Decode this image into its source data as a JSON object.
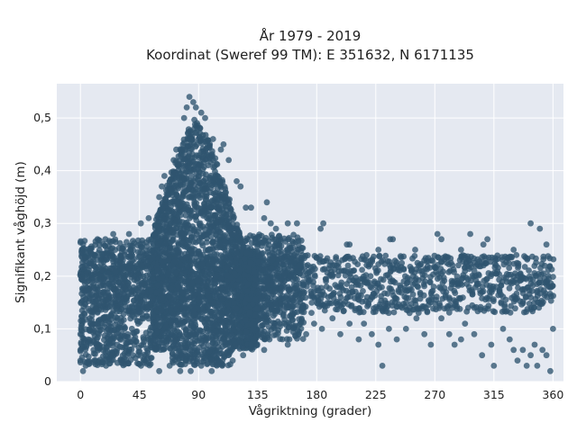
{
  "chart_data": {
    "type": "scatter",
    "title_line1": "År 1979 - 2019",
    "title_line2": "Koordinat (Sweref 99 TM): E 351632, N 6171135",
    "xlabel": "Vågriktning (grader)",
    "ylabel": "Signifikant våghöjd (m)",
    "xlim": [
      -18,
      368
    ],
    "ylim": [
      0,
      0.565
    ],
    "x_ticks": [
      0,
      45,
      90,
      135,
      180,
      225,
      270,
      315,
      360
    ],
    "x_tick_labels": [
      "0",
      "45",
      "90",
      "135",
      "180",
      "225",
      "270",
      "315",
      "360"
    ],
    "y_ticks": [
      0,
      0.1,
      0.2,
      0.3,
      0.4,
      0.5
    ],
    "y_tick_labels": [
      "0",
      "0,1",
      "0,2",
      "0,3",
      "0,4",
      "0,5"
    ],
    "grid": true,
    "marker_color": "#2f5570",
    "background_color": "#e5e9f1",
    "point_cloud": [
      {
        "x": [
          0,
          360
        ],
        "y": [
          0.13,
          0.24
        ],
        "note_dense": true
      },
      {
        "x": [
          55,
          130
        ],
        "y": [
          0.03,
          0.34
        ]
      },
      {
        "x": [
          75,
          105
        ],
        "y": [
          0.03,
          0.5
        ]
      }
    ],
    "points": [
      [
        83,
        0.54
      ],
      [
        86,
        0.53
      ],
      [
        81,
        0.52
      ],
      [
        88,
        0.52
      ],
      [
        79,
        0.5
      ],
      [
        92,
        0.51
      ],
      [
        95,
        0.5
      ],
      [
        101,
        0.46
      ],
      [
        107,
        0.44
      ],
      [
        109,
        0.45
      ],
      [
        73,
        0.44
      ],
      [
        71,
        0.42
      ],
      [
        113,
        0.42
      ],
      [
        119,
        0.38
      ],
      [
        64,
        0.39
      ],
      [
        62,
        0.37
      ],
      [
        122,
        0.37
      ],
      [
        60,
        0.35
      ],
      [
        126,
        0.33
      ],
      [
        130,
        0.33
      ],
      [
        142,
        0.34
      ],
      [
        140,
        0.31
      ],
      [
        145,
        0.3
      ],
      [
        149,
        0.29
      ],
      [
        158,
        0.3
      ],
      [
        165,
        0.3
      ],
      [
        185,
        0.3
      ],
      [
        183,
        0.29
      ],
      [
        203,
        0.26
      ],
      [
        205,
        0.26
      ],
      [
        218,
        0.24
      ],
      [
        227,
        0.25
      ],
      [
        238,
        0.27
      ],
      [
        236,
        0.27
      ],
      [
        255,
        0.25
      ],
      [
        272,
        0.28
      ],
      [
        275,
        0.27
      ],
      [
        290,
        0.25
      ],
      [
        297,
        0.28
      ],
      [
        307,
        0.26
      ],
      [
        310,
        0.27
      ],
      [
        343,
        0.3
      ],
      [
        350,
        0.29
      ],
      [
        355,
        0.26
      ],
      [
        330,
        0.25
      ],
      [
        13,
        0.27
      ],
      [
        19,
        0.27
      ],
      [
        25,
        0.28
      ],
      [
        37,
        0.28
      ],
      [
        46,
        0.3
      ],
      [
        52,
        0.31
      ],
      [
        0,
        0.09
      ],
      [
        0,
        0.06
      ],
      [
        0,
        0.04
      ],
      [
        2,
        0.02
      ],
      [
        4,
        0.03
      ],
      [
        6,
        0.08
      ],
      [
        10,
        0.06
      ],
      [
        14,
        0.09
      ],
      [
        20,
        0.04
      ],
      [
        24,
        0.05
      ],
      [
        28,
        0.07
      ],
      [
        32,
        0.04
      ],
      [
        36,
        0.09
      ],
      [
        40,
        0.05
      ],
      [
        44,
        0.11
      ],
      [
        48,
        0.04
      ],
      [
        52,
        0.08
      ],
      [
        60,
        0.02
      ],
      [
        68,
        0.03
      ],
      [
        76,
        0.02
      ],
      [
        84,
        0.02
      ],
      [
        92,
        0.03
      ],
      [
        100,
        0.02
      ],
      [
        108,
        0.03
      ],
      [
        116,
        0.04
      ],
      [
        124,
        0.05
      ],
      [
        130,
        0.07
      ],
      [
        136,
        0.09
      ],
      [
        140,
        0.06
      ],
      [
        144,
        0.08
      ],
      [
        148,
        0.1
      ],
      [
        152,
        0.11
      ],
      [
        158,
        0.07
      ],
      [
        166,
        0.09
      ],
      [
        172,
        0.09
      ],
      [
        178,
        0.11
      ],
      [
        184,
        0.1
      ],
      [
        192,
        0.12
      ],
      [
        198,
        0.09
      ],
      [
        205,
        0.11
      ],
      [
        212,
        0.08
      ],
      [
        216,
        0.11
      ],
      [
        222,
        0.09
      ],
      [
        227,
        0.07
      ],
      [
        230,
        0.03
      ],
      [
        235,
        0.1
      ],
      [
        241,
        0.08
      ],
      [
        248,
        0.1
      ],
      [
        256,
        0.12
      ],
      [
        262,
        0.09
      ],
      [
        267,
        0.07
      ],
      [
        275,
        0.12
      ],
      [
        281,
        0.09
      ],
      [
        285,
        0.07
      ],
      [
        290,
        0.08
      ],
      [
        293,
        0.11
      ],
      [
        300,
        0.09
      ],
      [
        306,
        0.05
      ],
      [
        313,
        0.07
      ],
      [
        315,
        0.03
      ],
      [
        322,
        0.1
      ],
      [
        327,
        0.08
      ],
      [
        330,
        0.06
      ],
      [
        333,
        0.04
      ],
      [
        337,
        0.06
      ],
      [
        340,
        0.03
      ],
      [
        343,
        0.05
      ],
      [
        346,
        0.07
      ],
      [
        348,
        0.03
      ],
      [
        352,
        0.06
      ],
      [
        355,
        0.05
      ],
      [
        358,
        0.02
      ],
      [
        360,
        0.1
      ]
    ]
  }
}
